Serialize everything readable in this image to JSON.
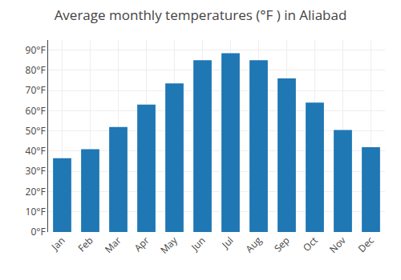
{
  "chart_data": {
    "type": "bar",
    "title": "Average monthly temperatures (°F ) in Aliabad",
    "categories": [
      "Jan",
      "Feb",
      "Mar",
      "Apr",
      "May",
      "Jun",
      "Jul",
      "Aug",
      "Sep",
      "Oct",
      "Nov",
      "Dec"
    ],
    "values": [
      36.5,
      41.0,
      52.0,
      63.0,
      73.5,
      85.0,
      88.5,
      85.0,
      76.0,
      64.0,
      50.5,
      42.0
    ],
    "ylim": [
      0,
      95
    ],
    "yticks": [
      {
        "value": 0,
        "label": "0°F"
      },
      {
        "value": 10,
        "label": "10°F"
      },
      {
        "value": 20,
        "label": "20°F"
      },
      {
        "value": 30,
        "label": "30°F"
      },
      {
        "value": 40,
        "label": "40°F"
      },
      {
        "value": 50,
        "label": "50°F"
      },
      {
        "value": 60,
        "label": "60°F"
      },
      {
        "value": 70,
        "label": "70°F"
      },
      {
        "value": 80,
        "label": "80°F"
      },
      {
        "value": 90,
        "label": "90°F"
      }
    ],
    "grid": true
  }
}
